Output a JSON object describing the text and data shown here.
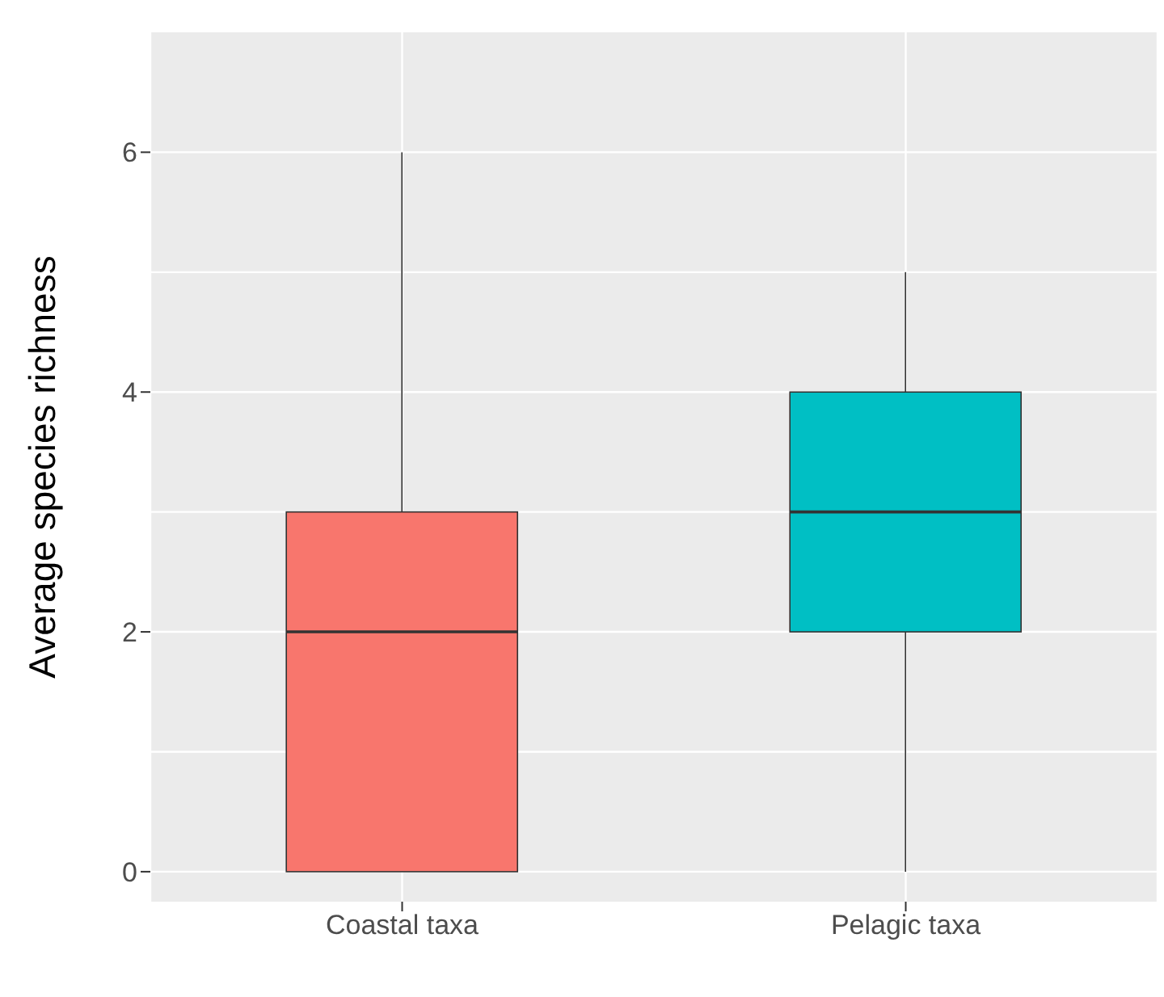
{
  "chart_data": {
    "type": "box",
    "ylabel": "Average species richness",
    "categories": [
      "Coastal taxa",
      "Pelagic taxa"
    ],
    "colors": [
      "#f8766d",
      "#00bfc4"
    ],
    "boxes": [
      {
        "low": 0,
        "q1": 0,
        "median": 2,
        "q3": 3,
        "high": 6
      },
      {
        "low": 0,
        "q1": 2,
        "median": 3,
        "q3": 4,
        "high": 5
      }
    ],
    "ylim": [
      -0.25,
      7
    ],
    "yticks": [
      0,
      2,
      4,
      6
    ],
    "grid": true
  }
}
